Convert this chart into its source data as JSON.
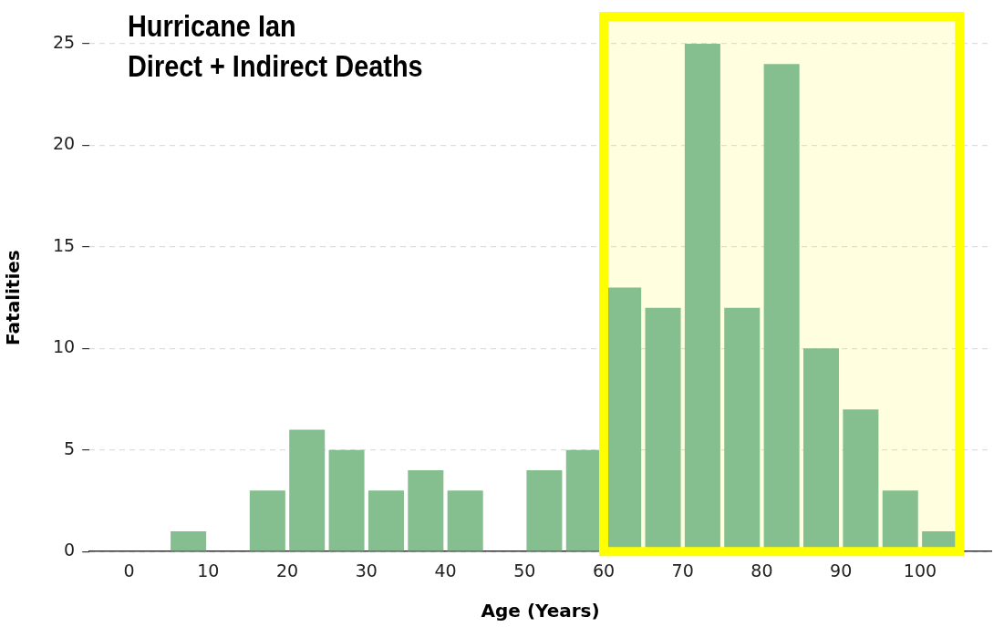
{
  "chart_data": {
    "type": "histogram",
    "title": "Hurricane Ian",
    "subtitle": "Direct + Indirect Deaths",
    "xlabel": "Age (Years)",
    "ylabel": "Fatalities",
    "bins": [
      0,
      5,
      10,
      15,
      20,
      25,
      30,
      35,
      40,
      45,
      50,
      55,
      60,
      65,
      70,
      75,
      80,
      85,
      90,
      95,
      100,
      105
    ],
    "values": [
      0,
      1,
      0,
      3,
      6,
      5,
      3,
      4,
      3,
      0,
      4,
      5,
      13,
      12,
      25,
      12,
      24,
      10,
      7,
      3,
      1
    ],
    "color": "#86bf8f",
    "xlim": [
      -5,
      109
    ],
    "xticks": [
      0,
      10,
      20,
      30,
      40,
      50,
      60,
      70,
      80,
      90,
      100
    ],
    "ylim": [
      0,
      25
    ],
    "yticks": [
      0,
      5,
      10,
      15,
      20,
      25
    ],
    "grid": "y",
    "bands": [
      {
        "axis": "x",
        "from": 60,
        "to": 105,
        "color": "#ffff00"
      }
    ]
  }
}
